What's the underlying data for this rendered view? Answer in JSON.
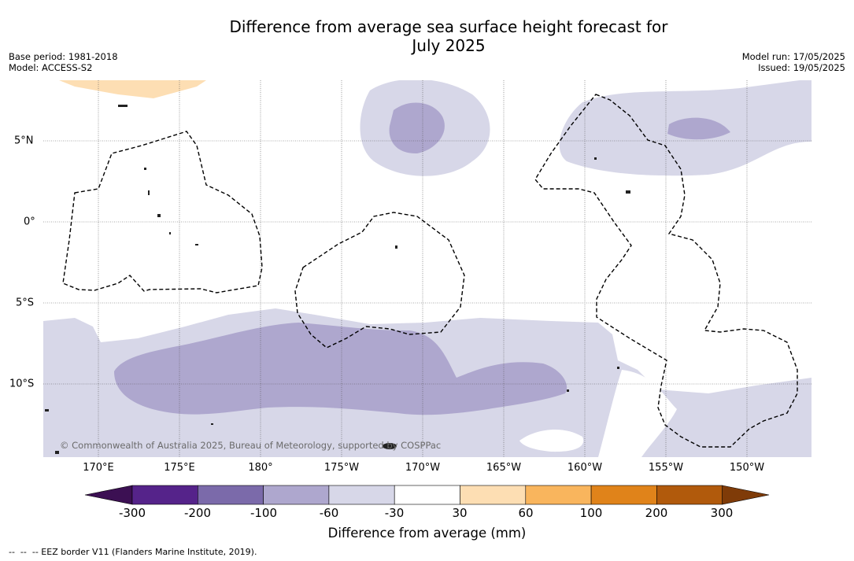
{
  "title_line1": "Difference from average sea surface height forecast for",
  "title_line2": "July 2025",
  "base_period": "Base period: 1981-2018",
  "model": "Model: ACCESS-S2",
  "model_run": "Model run: 17/05/2025",
  "issued": "Issued: 19/05/2025",
  "copyright": "© Commonwealth of Australia 2025, Bureau of Meteorology, supported by COSPPac",
  "lat_labels": [
    "5°N",
    "0°",
    "5°S",
    "10°S"
  ],
  "lon_labels": [
    "170°E",
    "175°E",
    "180°",
    "175°W",
    "170°W",
    "165°W",
    "160°W",
    "155°W",
    "150°W"
  ],
  "colorbar": {
    "ticks": [
      "-300",
      "-200",
      "-100",
      "-60",
      "-30",
      "30",
      "60",
      "100",
      "200",
      "300"
    ],
    "label": "Difference from average (mm)",
    "colors": [
      "#3c1053",
      "#55238a",
      "#7b6aaa",
      "#aea7ce",
      "#d7d7e8",
      "#ffffff",
      "#fddeb3",
      "#f9b55d",
      "#e0831a",
      "#b15a0c",
      "#7f3b08"
    ]
  },
  "footer": "--  --  -- EEZ border V11 (Flanders Marine Institute, 2019)."
}
